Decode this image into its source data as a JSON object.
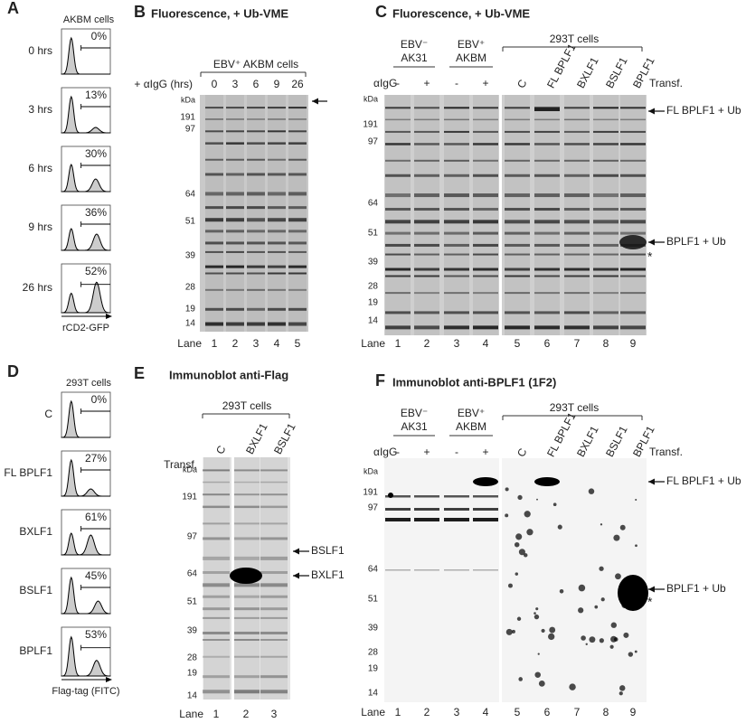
{
  "panel_a": {
    "label": "A",
    "title": "AKBM cells",
    "rows": [
      {
        "label": "0 hrs",
        "percent": "0%"
      },
      {
        "label": "3 hrs",
        "percent": "13%"
      },
      {
        "label": "6 hrs",
        "percent": "30%"
      },
      {
        "label": "9 hrs",
        "percent": "36%"
      },
      {
        "label": "26 hrs",
        "percent": "52%"
      }
    ],
    "axis_label": "rCD2-GFP"
  },
  "panel_b": {
    "label": "B",
    "title": "Fluorescence, + Ub-VME",
    "cells": "EBV⁺ AKBM cells",
    "treatment": "+ αIgG (hrs)",
    "times": [
      "0",
      "3",
      "6",
      "9",
      "26"
    ],
    "markers": [
      "kDa",
      "191",
      "97",
      "64",
      "51",
      "39",
      "28",
      "19",
      "14"
    ],
    "lane_label": "Lane",
    "lanes": [
      "1",
      "2",
      "3",
      "4",
      "5"
    ]
  },
  "panel_c": {
    "label": "C",
    "title": "Fluorescence, + Ub-VME",
    "groups": [
      [
        "EBV⁻",
        "AK31"
      ],
      [
        "EBV⁺",
        "AKBM"
      ],
      [
        "293T cells"
      ]
    ],
    "treatment_label": "αIgG",
    "treatment": [
      "-",
      "+",
      "-",
      "+"
    ],
    "transfection_label": "Transf.",
    "transfections": [
      "C",
      "FL BPLF1",
      "BXLF1",
      "BSLF1",
      "BPLF1"
    ],
    "markers": [
      "kDa",
      "191",
      "97",
      "64",
      "51",
      "39",
      "28",
      "19",
      "14"
    ],
    "annotations": [
      "FL BPLF1 + Ub",
      "BPLF1 + Ub",
      "*"
    ],
    "lane_label": "Lane",
    "lanes": [
      "1",
      "2",
      "3",
      "4",
      "5",
      "6",
      "7",
      "8",
      "9"
    ]
  },
  "panel_d": {
    "label": "D",
    "title": "293T cells",
    "rows": [
      {
        "label": "C",
        "percent": "0%"
      },
      {
        "label": "FL BPLF1",
        "percent": "27%"
      },
      {
        "label": "BXLF1",
        "percent": "61%"
      },
      {
        "label": "BSLF1",
        "percent": "45%"
      },
      {
        "label": "BPLF1",
        "percent": "53%"
      }
    ],
    "axis_label": "Flag-tag (FITC)"
  },
  "panel_e": {
    "label": "E",
    "title": "Immunoblot anti-Flag",
    "cells": "293T cells",
    "transfection_label": "Transf.",
    "transfections": [
      "C",
      "BXLF1",
      "BSLF1"
    ],
    "markers": [
      "kDa",
      "191",
      "97",
      "64",
      "51",
      "39",
      "28",
      "19",
      "14"
    ],
    "annotations": [
      "BSLF1",
      "BXLF1"
    ],
    "lane_label": "Lane",
    "lanes": [
      "1",
      "2",
      "3"
    ]
  },
  "panel_f": {
    "label": "F",
    "title": "Immunoblot anti-BPLF1 (1F2)",
    "groups": [
      [
        "EBV⁻",
        "AK31"
      ],
      [
        "EBV⁺",
        "AKBM"
      ],
      [
        "293T cells"
      ]
    ],
    "treatment_label": "αIgG",
    "treatment": [
      "-",
      "+",
      "-",
      "+"
    ],
    "transfection_label": "Transf.",
    "transfections": [
      "C",
      "FL BPLF1",
      "BXLF1",
      "BSLF1",
      "BPLF1"
    ],
    "markers": [
      "kDa",
      "191",
      "97",
      "64",
      "51",
      "39",
      "28",
      "19",
      "14"
    ],
    "annotations": [
      "FL BPLF1 + Ub",
      "BPLF1 + Ub",
      "*"
    ],
    "lane_label": "Lane",
    "lanes": [
      "1",
      "2",
      "3",
      "4",
      "5",
      "6",
      "7",
      "8",
      "9"
    ]
  }
}
